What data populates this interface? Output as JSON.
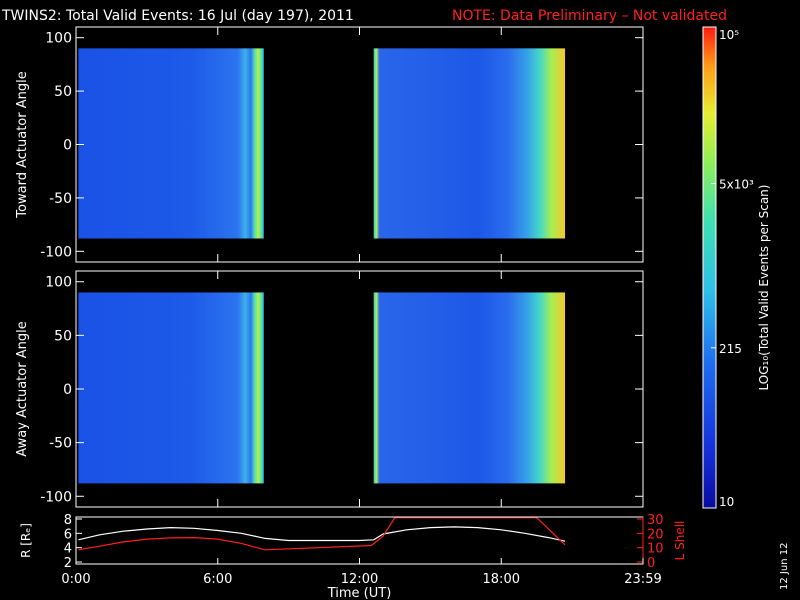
{
  "header": {
    "title": "TWINS2: Total Valid Events: 16 Jul (day 197), 2011",
    "note": "NOTE: Data Preliminary – Not validated"
  },
  "date_stamp": "12 Jun 12",
  "colors": {
    "background": "#000000",
    "axes": "#ffffff",
    "note": "#ff2020",
    "l_shell_line": "#ff2020",
    "r_line": "#ffffff"
  },
  "chart_data": [
    {
      "type": "heatmap",
      "panel": "toward",
      "ylabel": "Toward Actuator Angle",
      "ylim": [
        -110,
        110
      ],
      "yticks": [
        100,
        50,
        0,
        -50,
        -100
      ],
      "xlim": [
        0,
        24
      ],
      "x_tick_labels": [
        "0:00",
        "6:00",
        "12:00",
        "18:00",
        "23:59"
      ],
      "data_blocks": [
        [
          0.1,
          7.95
        ],
        [
          12.6,
          20.7
        ]
      ],
      "angle_range": [
        -88,
        90
      ]
    },
    {
      "type": "heatmap",
      "panel": "away",
      "ylabel": "Away Actuator Angle",
      "ylim": [
        -110,
        110
      ],
      "yticks": [
        100,
        50,
        0,
        -50,
        -100
      ],
      "xlim": [
        0,
        24
      ],
      "x_tick_labels": [
        "0:00",
        "6:00",
        "12:00",
        "18:00",
        "23:59"
      ],
      "data_blocks": [
        [
          0.1,
          7.95
        ],
        [
          12.6,
          20.7
        ]
      ],
      "angle_range": [
        -88,
        90
      ]
    },
    {
      "type": "line",
      "panel": "orbit",
      "xlabel": "Time (UT)",
      "ylabel_left": "R [Rₑ]",
      "ylabel_right": "L Shell",
      "xlim": [
        0,
        24
      ],
      "x_tick_labels": [
        "0:00",
        "6:00",
        "12:00",
        "18:00",
        "23:59"
      ],
      "left_ylim": [
        2,
        8
      ],
      "left_yticks": [
        "8",
        "6",
        "4",
        "2"
      ],
      "right_ylim": [
        0,
        30
      ],
      "right_yticks": [
        "30",
        "20",
        "10",
        "0"
      ],
      "series": [
        {
          "axis": "left",
          "x": [
            0.1,
            1,
            2,
            3,
            4,
            5,
            6,
            7,
            8,
            9,
            10,
            11,
            12,
            12.6,
            13,
            14,
            15,
            16,
            17,
            18,
            19,
            20,
            20.7
          ],
          "y": [
            5.1,
            5.8,
            6.3,
            6.6,
            6.8,
            6.7,
            6.4,
            6.0,
            5.3,
            5.0,
            5.0,
            5.0,
            5.0,
            5.1,
            5.9,
            6.5,
            6.8,
            6.9,
            6.8,
            6.5,
            6.0,
            5.4,
            4.9
          ]
        },
        {
          "axis": "right",
          "x": [
            0.1,
            1,
            2,
            3,
            4,
            5,
            6,
            7,
            8,
            12.5,
            13.0,
            13.5,
            17.0,
            18.5,
            19.5,
            20.7
          ],
          "y": [
            8.5,
            11,
            14,
            16,
            16.8,
            17,
            16,
            13,
            8.5,
            11.5,
            18,
            31,
            31,
            31,
            31,
            12
          ]
        }
      ]
    }
  ],
  "colorbar": {
    "label": "LOG₁₀(Total Valid Events per Scan)",
    "tick_labels": [
      "10⁵",
      "5x10³",
      "215",
      "10"
    ],
    "tick_values": [
      100000,
      5000,
      215,
      10
    ],
    "range": [
      10,
      100000
    ],
    "scale": "log"
  }
}
